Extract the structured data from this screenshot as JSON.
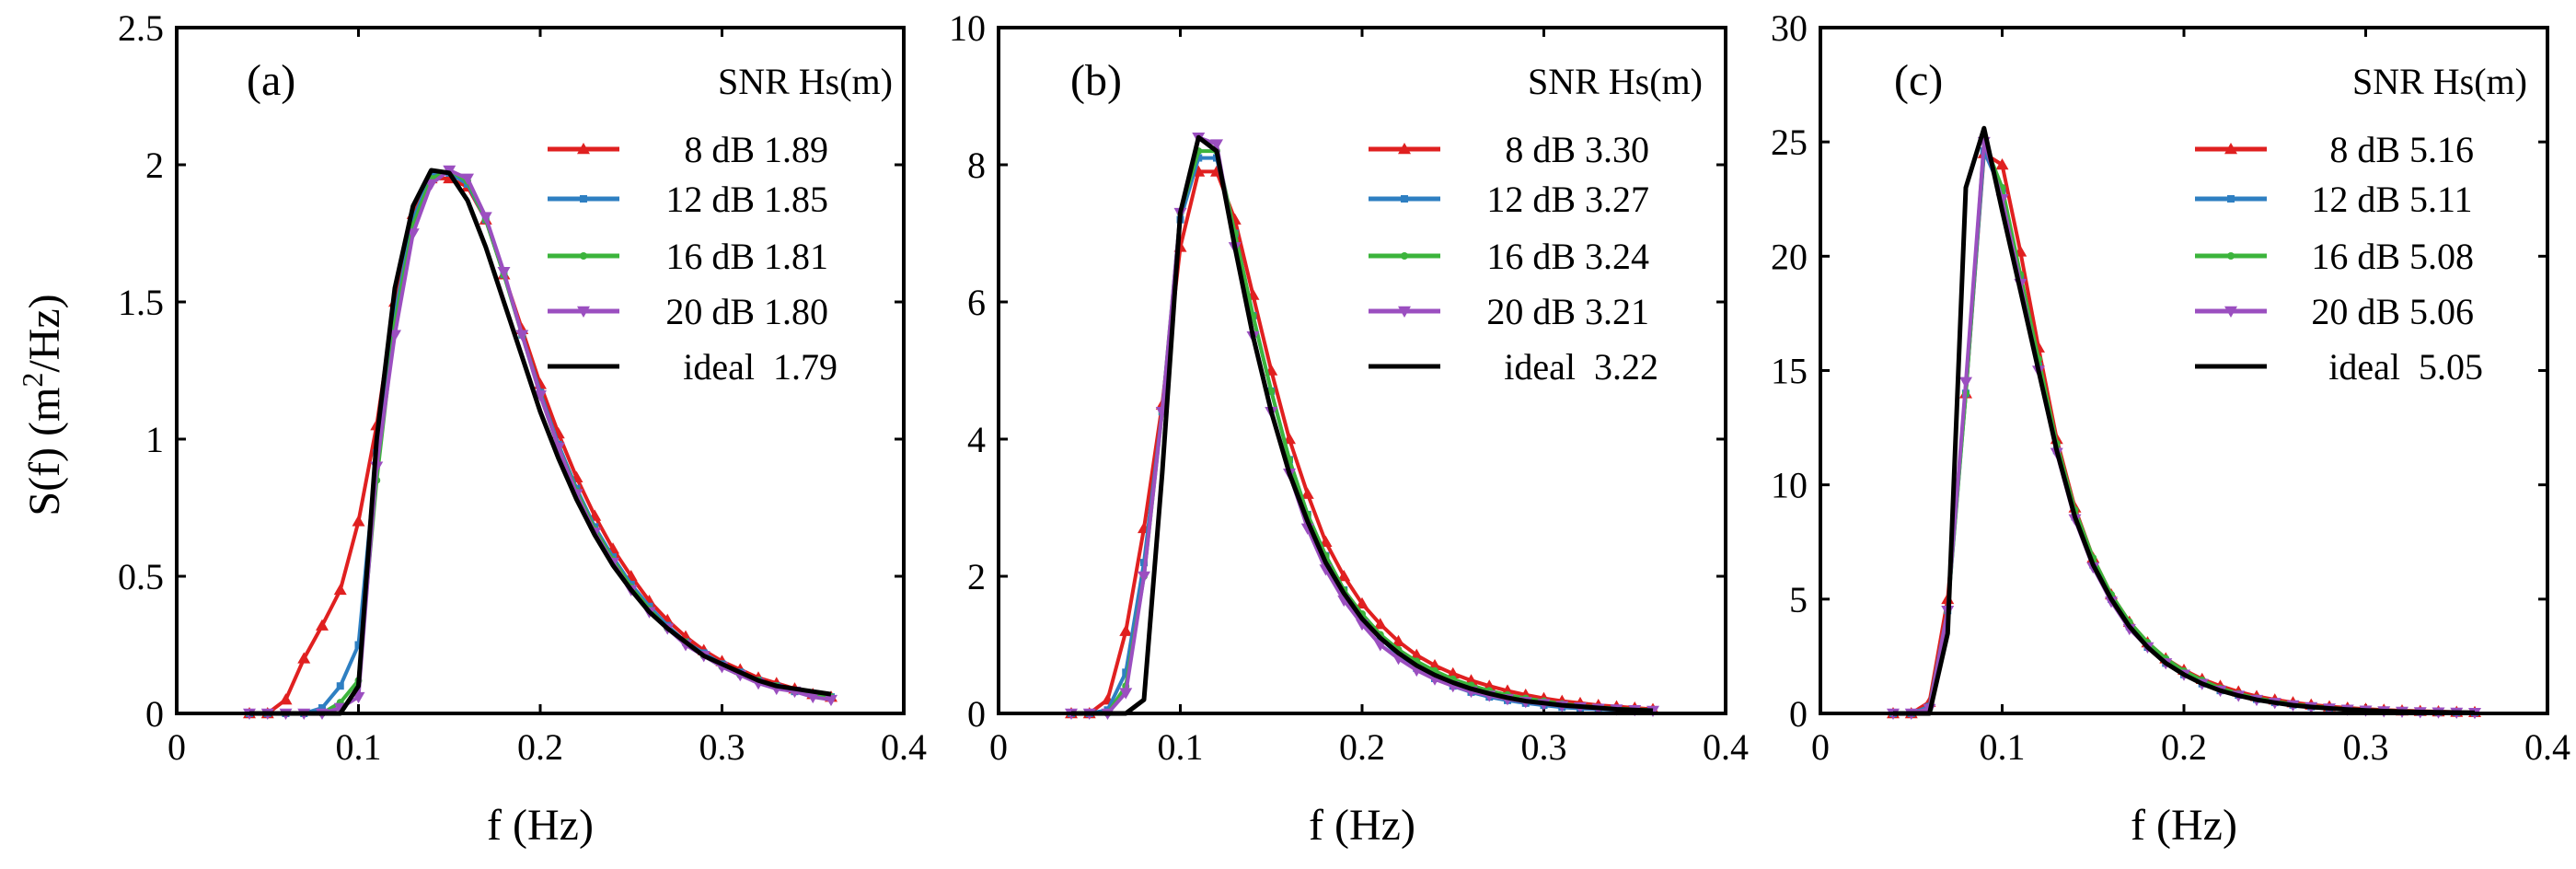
{
  "figure": {
    "ylabel": "S(f) (m",
    "ylabel_sup": "2",
    "ylabel_tail": "/Hz)",
    "xlabel": "f (Hz)"
  },
  "colors": {
    "8 dB": "#e02020",
    "12 dB": "#2e7fc2",
    "16 dB": "#3cb43c",
    "20 dB": "#9b4fc0",
    "ideal": "#000000"
  },
  "chart_data": [
    {
      "type": "line",
      "panel_label": "(a)",
      "xlim": [
        0,
        0.4
      ],
      "ylim": [
        0,
        2.5
      ],
      "xticks": [
        "0",
        "0.1",
        "0.2",
        "0.3",
        "0.4"
      ],
      "yticks": [
        "0",
        "0.5",
        "1",
        "1.5",
        "2",
        "2.5"
      ],
      "legend_header": "SNR Hs(m)",
      "legend": [
        {
          "snr": " 8 dB",
          "hs": "1.89"
        },
        {
          "snr": "12 dB",
          "hs": "1.85"
        },
        {
          "snr": "16 dB",
          "hs": "1.81"
        },
        {
          "snr": "20 dB",
          "hs": "1.80"
        },
        {
          "snr": "ideal",
          "hs": " 1.79"
        }
      ],
      "x": [
        0.04,
        0.05,
        0.06,
        0.07,
        0.08,
        0.09,
        0.1,
        0.11,
        0.12,
        0.13,
        0.14,
        0.15,
        0.16,
        0.17,
        0.18,
        0.19,
        0.2,
        0.21,
        0.22,
        0.23,
        0.24,
        0.25,
        0.26,
        0.27,
        0.28,
        0.29,
        0.3,
        0.31,
        0.32,
        0.33,
        0.34,
        0.35,
        0.36
      ],
      "series": [
        {
          "name": "8 dB",
          "marker": "tri-up",
          "values": [
            0,
            0,
            0.05,
            0.2,
            0.32,
            0.45,
            0.7,
            1.05,
            1.5,
            1.82,
            1.95,
            1.95,
            1.92,
            1.8,
            1.6,
            1.4,
            1.2,
            1.02,
            0.86,
            0.72,
            0.6,
            0.5,
            0.41,
            0.34,
            0.28,
            0.23,
            0.19,
            0.16,
            0.13,
            0.11,
            0.09,
            0.07,
            0.06
          ]
        },
        {
          "name": "12 dB",
          "marker": "square",
          "values": [
            0,
            0,
            0,
            0,
            0.02,
            0.1,
            0.25,
            0.95,
            1.45,
            1.8,
            1.96,
            1.97,
            1.93,
            1.8,
            1.6,
            1.38,
            1.17,
            0.98,
            0.82,
            0.68,
            0.57,
            0.47,
            0.39,
            0.32,
            0.26,
            0.22,
            0.18,
            0.15,
            0.12,
            0.1,
            0.08,
            0.07,
            0.06
          ]
        },
        {
          "name": "16 dB",
          "marker": "dot",
          "values": [
            0,
            0,
            0,
            0,
            0,
            0.04,
            0.12,
            0.85,
            1.42,
            1.78,
            1.95,
            1.98,
            1.94,
            1.8,
            1.6,
            1.38,
            1.16,
            0.97,
            0.81,
            0.67,
            0.56,
            0.46,
            0.38,
            0.31,
            0.26,
            0.21,
            0.17,
            0.14,
            0.12,
            0.1,
            0.08,
            0.07,
            0.06
          ]
        },
        {
          "name": "20 dB",
          "marker": "tri-down",
          "values": [
            0,
            0,
            0,
            0,
            0,
            0.02,
            0.06,
            0.9,
            1.38,
            1.75,
            1.93,
            1.98,
            1.95,
            1.81,
            1.61,
            1.38,
            1.16,
            0.97,
            0.8,
            0.66,
            0.55,
            0.45,
            0.37,
            0.31,
            0.25,
            0.21,
            0.17,
            0.14,
            0.11,
            0.09,
            0.08,
            0.06,
            0.05
          ]
        },
        {
          "name": "ideal",
          "marker": "none",
          "values": [
            0,
            0,
            0,
            0,
            0,
            0,
            0.1,
            1.0,
            1.55,
            1.85,
            1.98,
            1.97,
            1.87,
            1.7,
            1.5,
            1.3,
            1.1,
            0.93,
            0.78,
            0.65,
            0.54,
            0.45,
            0.37,
            0.31,
            0.26,
            0.21,
            0.18,
            0.15,
            0.12,
            0.1,
            0.09,
            0.08,
            0.07
          ]
        }
      ]
    },
    {
      "type": "line",
      "panel_label": "(b)",
      "xlim": [
        0,
        0.4
      ],
      "ylim": [
        0,
        10
      ],
      "xticks": [
        "0",
        "0.1",
        "0.2",
        "0.3",
        "0.4"
      ],
      "yticks": [
        "0",
        "2",
        "4",
        "6",
        "8",
        "10"
      ],
      "legend_header": "SNR Hs(m)",
      "legend": [
        {
          "snr": " 8 dB",
          "hs": "3.30"
        },
        {
          "snr": "12 dB",
          "hs": "3.27"
        },
        {
          "snr": "16 dB",
          "hs": "3.24"
        },
        {
          "snr": "20 dB",
          "hs": "3.21"
        },
        {
          "snr": "ideal",
          "hs": " 3.22"
        }
      ],
      "x": [
        0.04,
        0.05,
        0.06,
        0.07,
        0.08,
        0.09,
        0.1,
        0.11,
        0.12,
        0.13,
        0.14,
        0.15,
        0.16,
        0.17,
        0.18,
        0.19,
        0.2,
        0.21,
        0.22,
        0.23,
        0.24,
        0.25,
        0.26,
        0.27,
        0.28,
        0.29,
        0.3,
        0.31,
        0.32,
        0.33,
        0.34,
        0.35,
        0.36
      ],
      "series": [
        {
          "name": "8 dB",
          "marker": "tri-up",
          "values": [
            0,
            0,
            0.2,
            1.2,
            2.7,
            4.5,
            6.8,
            7.9,
            7.9,
            7.2,
            6.1,
            5.0,
            4.0,
            3.2,
            2.5,
            2.0,
            1.6,
            1.3,
            1.05,
            0.85,
            0.7,
            0.58,
            0.48,
            0.4,
            0.33,
            0.27,
            0.22,
            0.18,
            0.15,
            0.12,
            0.1,
            0.08,
            0.06
          ]
        },
        {
          "name": "12 dB",
          "marker": "square",
          "values": [
            0,
            0,
            0.05,
            0.6,
            2.2,
            4.4,
            7.2,
            8.1,
            8.1,
            7.0,
            5.8,
            4.7,
            3.7,
            2.9,
            2.3,
            1.8,
            1.4,
            1.1,
            0.85,
            0.66,
            0.51,
            0.4,
            0.31,
            0.24,
            0.19,
            0.15,
            0.12,
            0.09,
            0.07,
            0.06,
            0.05,
            0.04,
            0.03
          ]
        },
        {
          "name": "16 dB",
          "marker": "dot",
          "values": [
            0,
            0,
            0,
            0.4,
            2.0,
            4.4,
            7.3,
            8.2,
            8.2,
            7.0,
            5.8,
            4.7,
            3.7,
            2.9,
            2.3,
            1.8,
            1.45,
            1.15,
            0.93,
            0.76,
            0.62,
            0.5,
            0.41,
            0.33,
            0.27,
            0.22,
            0.18,
            0.14,
            0.11,
            0.09,
            0.07,
            0.06,
            0.05
          ]
        },
        {
          "name": "20 dB",
          "marker": "tri-down",
          "values": [
            0,
            0,
            0,
            0.3,
            2.0,
            4.4,
            7.3,
            8.4,
            8.3,
            6.8,
            5.5,
            4.4,
            3.5,
            2.7,
            2.1,
            1.65,
            1.3,
            1.0,
            0.8,
            0.63,
            0.5,
            0.4,
            0.32,
            0.26,
            0.21,
            0.17,
            0.14,
            0.11,
            0.09,
            0.07,
            0.06,
            0.05,
            0.04
          ]
        },
        {
          "name": "ideal",
          "marker": "none",
          "values": [
            0,
            0,
            0,
            0,
            0.2,
            3.5,
            7.3,
            8.4,
            8.2,
            6.8,
            5.5,
            4.4,
            3.5,
            2.8,
            2.2,
            1.75,
            1.38,
            1.1,
            0.88,
            0.7,
            0.56,
            0.45,
            0.36,
            0.29,
            0.23,
            0.18,
            0.15,
            0.12,
            0.1,
            0.08,
            0.06,
            0.05,
            0.04
          ]
        }
      ]
    },
    {
      "type": "line",
      "panel_label": "(c)",
      "xlim": [
        0,
        0.4
      ],
      "ylim": [
        0,
        30
      ],
      "xticks": [
        "0",
        "0.1",
        "0.2",
        "0.3",
        "0.4"
      ],
      "yticks": [
        "0",
        "5",
        "10",
        "15",
        "20",
        "25",
        "30"
      ],
      "legend_header": "SNR Hs(m)",
      "legend": [
        {
          "snr": " 8 dB",
          "hs": "5.16"
        },
        {
          "snr": "12 dB",
          "hs": "5.11"
        },
        {
          "snr": "16 dB",
          "hs": "5.08"
        },
        {
          "snr": "20 dB",
          "hs": "5.06"
        },
        {
          "snr": "ideal",
          "hs": " 5.05"
        }
      ],
      "x": [
        0.04,
        0.05,
        0.06,
        0.07,
        0.08,
        0.09,
        0.1,
        0.11,
        0.12,
        0.13,
        0.14,
        0.15,
        0.16,
        0.17,
        0.18,
        0.19,
        0.2,
        0.21,
        0.22,
        0.23,
        0.24,
        0.25,
        0.26,
        0.27,
        0.28,
        0.29,
        0.3,
        0.31,
        0.32,
        0.33,
        0.34,
        0.35,
        0.36
      ],
      "series": [
        {
          "name": "8 dB",
          "marker": "tri-up",
          "values": [
            0,
            0,
            0.5,
            5.0,
            14.0,
            24.5,
            24.0,
            20.2,
            16.0,
            12.0,
            9.0,
            6.8,
            5.2,
            4.0,
            3.1,
            2.4,
            1.9,
            1.5,
            1.2,
            0.95,
            0.75,
            0.6,
            0.48,
            0.38,
            0.3,
            0.24,
            0.19,
            0.15,
            0.12,
            0.1,
            0.08,
            0.06,
            0.05
          ]
        },
        {
          "name": "12 dB",
          "marker": "square",
          "values": [
            0,
            0,
            0.3,
            4.5,
            14.0,
            24.6,
            22.8,
            19.0,
            15.2,
            11.5,
            8.6,
            6.5,
            5.0,
            3.8,
            2.9,
            2.2,
            1.7,
            1.3,
            1.0,
            0.8,
            0.62,
            0.48,
            0.37,
            0.29,
            0.22,
            0.17,
            0.13,
            0.1,
            0.08,
            0.06,
            0.05,
            0.04,
            0.03
          ]
        },
        {
          "name": "16 dB",
          "marker": "dot",
          "values": [
            0,
            0,
            0.2,
            4.5,
            14.0,
            25.0,
            23.0,
            19.2,
            15.5,
            11.8,
            8.9,
            6.8,
            5.2,
            4.0,
            3.1,
            2.4,
            1.85,
            1.45,
            1.1,
            0.86,
            0.67,
            0.52,
            0.41,
            0.32,
            0.25,
            0.19,
            0.15,
            0.12,
            0.09,
            0.07,
            0.06,
            0.05,
            0.04
          ]
        },
        {
          "name": "20 dB",
          "marker": "tri-down",
          "values": [
            0,
            0,
            0.2,
            4.5,
            14.5,
            25.0,
            22.5,
            18.8,
            15.0,
            11.4,
            8.5,
            6.4,
            4.9,
            3.7,
            2.9,
            2.2,
            1.7,
            1.3,
            1.0,
            0.78,
            0.6,
            0.47,
            0.36,
            0.28,
            0.22,
            0.17,
            0.13,
            0.1,
            0.08,
            0.06,
            0.05,
            0.04,
            0.03
          ]
        },
        {
          "name": "ideal",
          "marker": "none",
          "values": [
            0,
            0,
            0,
            3.5,
            23.0,
            25.6,
            22.0,
            18.5,
            15.0,
            11.5,
            8.6,
            6.5,
            5.0,
            3.8,
            2.9,
            2.2,
            1.7,
            1.3,
            1.0,
            0.78,
            0.6,
            0.47,
            0.36,
            0.28,
            0.22,
            0.17,
            0.13,
            0.1,
            0.08,
            0.06,
            0.05,
            0.04,
            0.03
          ]
        }
      ]
    }
  ]
}
